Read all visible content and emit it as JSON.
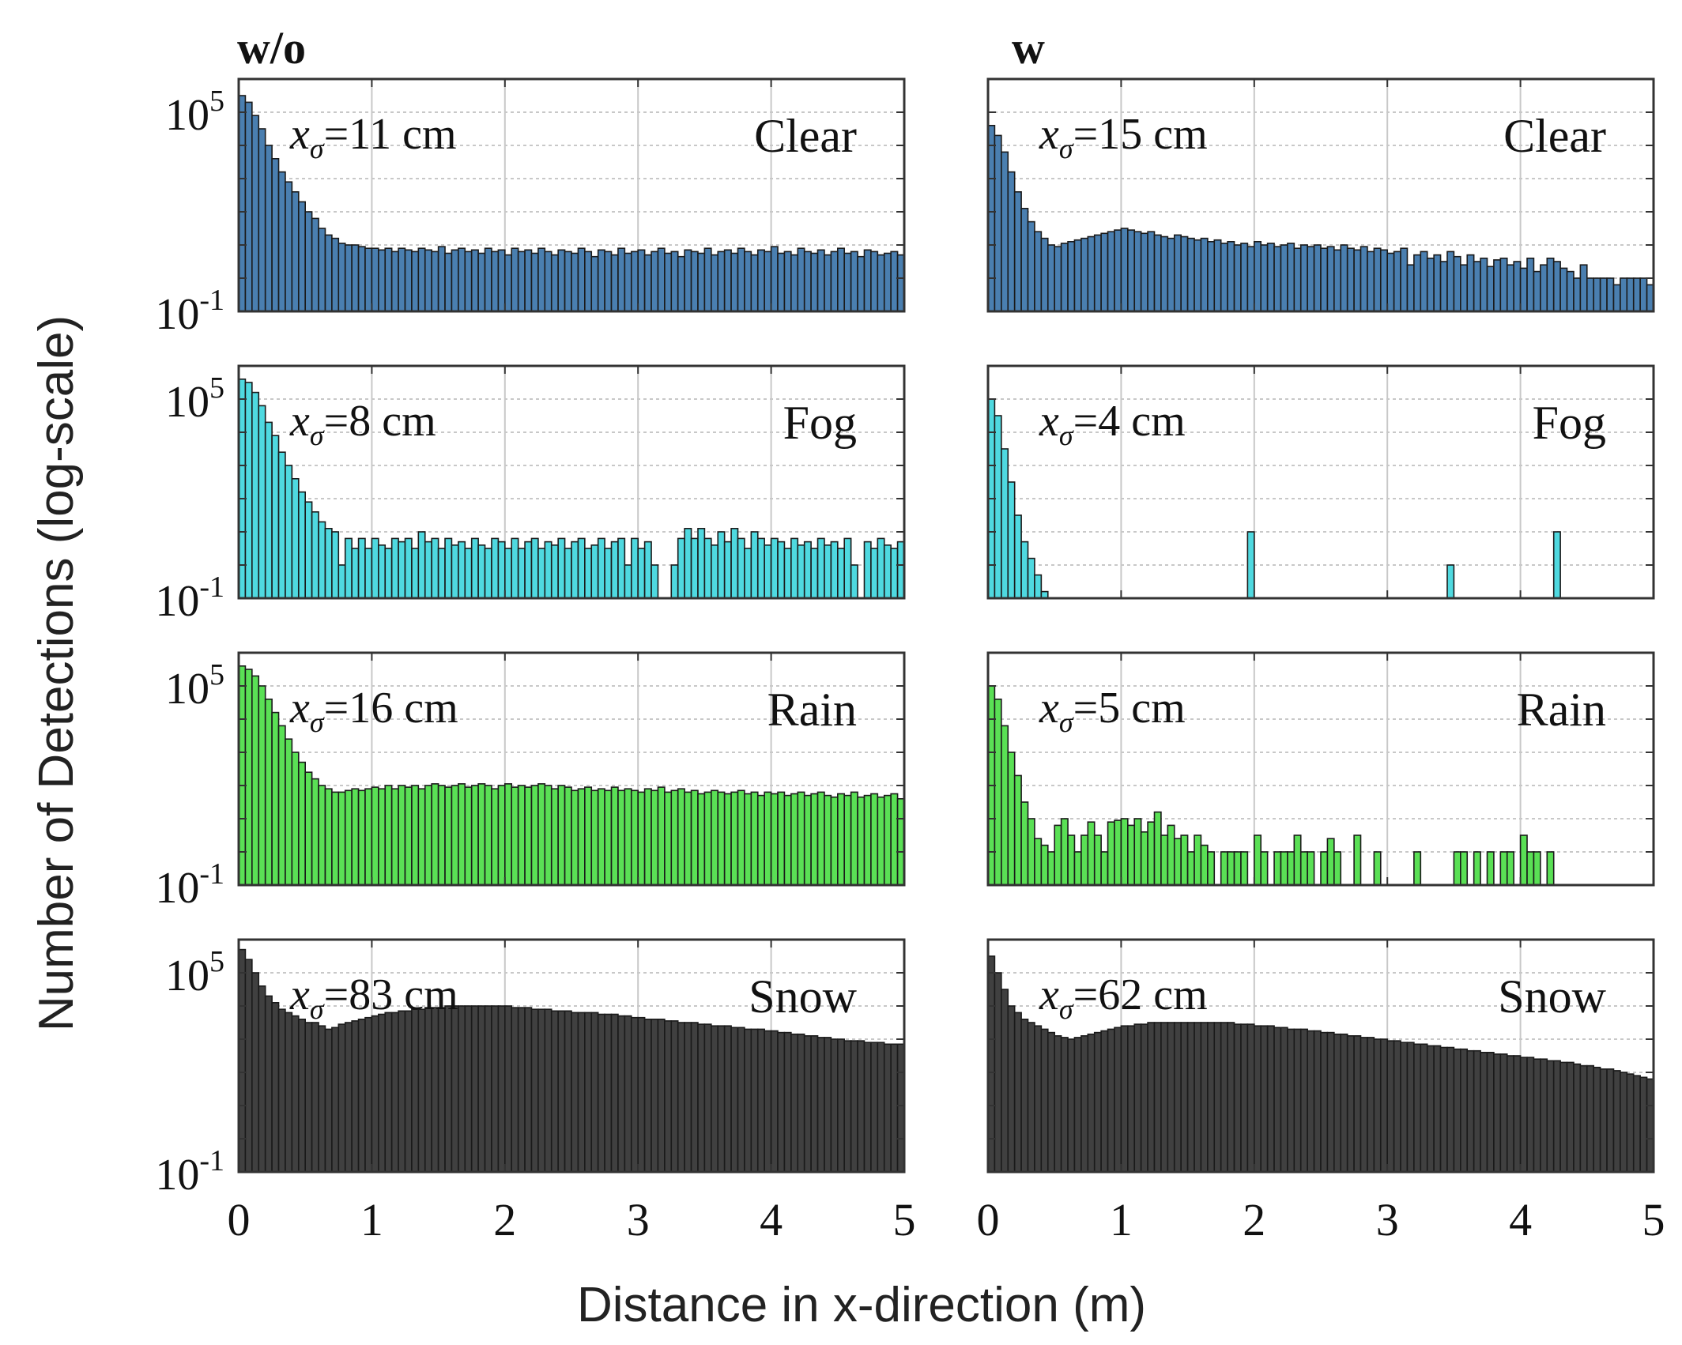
{
  "figure": {
    "y_axis_label": "Number of Detections (log-scale)",
    "x_axis_label": "Distance in x-direction (m)",
    "columns": [
      {
        "key": "wo",
        "label": "w/o"
      },
      {
        "key": "w",
        "label": "w"
      }
    ]
  },
  "colors": {
    "Clear": "#4a7fb0",
    "Fog": "#4fd9e0",
    "Rain": "#5ae055",
    "Snow": "#404040",
    "edge": "#1a1a1a",
    "grid": "#c8c8c8",
    "axis": "#333333"
  },
  "chart_data": [
    {
      "type": "bar",
      "column": "w/o",
      "condition": "Clear",
      "annotation_var": "x",
      "annotation_sub": "σ",
      "annotation_value": "=11 cm",
      "x_range": [
        0,
        5
      ],
      "bin_width": 0.05,
      "log_ylim": [
        -1,
        6
      ],
      "x_ticks": [
        "0",
        "1",
        "2",
        "3",
        "4",
        "5"
      ],
      "y_tick_base": "10",
      "y_ticks_exp": [
        "5",
        "-1"
      ],
      "log_values": [
        5.5,
        5.3,
        4.9,
        4.5,
        4.0,
        3.6,
        3.2,
        2.9,
        2.6,
        2.3,
        2.0,
        1.8,
        1.5,
        1.3,
        1.2,
        1.05,
        1.0,
        1.0,
        0.95,
        0.9,
        0.9,
        0.85,
        0.9,
        0.8,
        0.9,
        0.85,
        0.8,
        0.9,
        0.85,
        0.8,
        0.95,
        0.75,
        0.85,
        0.9,
        0.8,
        0.85,
        0.75,
        0.9,
        0.8,
        0.85,
        0.7,
        0.9,
        0.8,
        0.85,
        0.75,
        0.9,
        0.8,
        0.7,
        0.85,
        0.8,
        0.75,
        0.9,
        0.8,
        0.65,
        0.85,
        0.8,
        0.7,
        0.9,
        0.75,
        0.8,
        0.85,
        0.7,
        0.8,
        0.9,
        0.75,
        0.8,
        0.65,
        0.85,
        0.8,
        0.75,
        0.9,
        0.7,
        0.8,
        0.85,
        0.75,
        0.9,
        0.8,
        0.7,
        0.85,
        0.8,
        0.95,
        0.75,
        0.8,
        0.7,
        0.9,
        0.8,
        0.75,
        0.85,
        0.7,
        0.8,
        0.9,
        0.75,
        0.8,
        0.65,
        0.85,
        0.8,
        0.7,
        0.75,
        0.8,
        0.7
      ]
    },
    {
      "type": "bar",
      "column": "w",
      "condition": "Clear",
      "annotation_var": "x",
      "annotation_sub": "σ",
      "annotation_value": "=15 cm",
      "x_range": [
        0,
        5
      ],
      "bin_width": 0.05,
      "log_ylim": [
        -1,
        6
      ],
      "x_ticks": [
        "0",
        "1",
        "2",
        "3",
        "4",
        "5"
      ],
      "y_tick_base": "10",
      "y_ticks_exp": [
        "",
        ""
      ],
      "log_values": [
        4.6,
        4.3,
        3.8,
        3.2,
        2.6,
        2.1,
        1.7,
        1.4,
        1.2,
        1.0,
        0.95,
        1.05,
        1.1,
        1.15,
        1.2,
        1.25,
        1.3,
        1.35,
        1.4,
        1.45,
        1.5,
        1.45,
        1.4,
        1.35,
        1.4,
        1.3,
        1.25,
        1.2,
        1.3,
        1.25,
        1.2,
        1.15,
        1.2,
        1.1,
        1.15,
        1.05,
        1.1,
        1.0,
        1.05,
        0.95,
        1.1,
        1.0,
        1.05,
        0.95,
        1.0,
        1.05,
        0.9,
        1.0,
        0.95,
        1.0,
        0.9,
        0.95,
        0.85,
        1.0,
        0.9,
        0.85,
        0.95,
        0.8,
        0.9,
        0.85,
        0.75,
        0.8,
        0.9,
        0.4,
        0.7,
        0.8,
        0.6,
        0.7,
        0.5,
        0.8,
        0.65,
        0.4,
        0.7,
        0.5,
        0.6,
        0.35,
        0.55,
        0.6,
        0.4,
        0.5,
        0.3,
        0.6,
        0.2,
        0.4,
        0.6,
        0.5,
        0.3,
        0.2,
        0.0,
        0.4,
        0.0,
        0.0,
        0.0,
        0.0,
        -0.2,
        0.0,
        0.0,
        0.0,
        0.0,
        -0.2
      ]
    },
    {
      "type": "bar",
      "column": "w/o",
      "condition": "Fog",
      "annotation_var": "x",
      "annotation_sub": "σ",
      "annotation_value": "=8 cm",
      "x_range": [
        0,
        5
      ],
      "bin_width": 0.05,
      "log_ylim": [
        -1,
        6
      ],
      "x_ticks": [
        "0",
        "1",
        "2",
        "3",
        "4",
        "5"
      ],
      "y_tick_base": "10",
      "y_ticks_exp": [
        "5",
        "-1"
      ],
      "log_values": [
        5.6,
        5.5,
        5.2,
        4.8,
        4.3,
        3.9,
        3.4,
        3.0,
        2.6,
        2.2,
        1.9,
        1.6,
        1.3,
        1.1,
        1.0,
        0.0,
        0.8,
        0.5,
        0.8,
        0.5,
        0.8,
        0.6,
        0.5,
        0.8,
        0.7,
        0.8,
        0.5,
        1.0,
        0.7,
        0.8,
        0.5,
        0.8,
        0.6,
        0.7,
        0.5,
        0.8,
        0.6,
        0.5,
        0.8,
        0.7,
        0.5,
        0.8,
        0.5,
        0.7,
        0.8,
        0.5,
        0.7,
        0.6,
        0.8,
        0.5,
        0.7,
        0.8,
        0.5,
        0.6,
        0.8,
        0.5,
        0.7,
        0.8,
        0.0,
        0.8,
        0.5,
        0.7,
        0.0,
        -1.0,
        -1.0,
        0.0,
        0.8,
        1.1,
        0.8,
        1.1,
        0.8,
        0.6,
        1.0,
        0.7,
        1.1,
        0.8,
        0.5,
        1.0,
        0.8,
        0.6,
        0.8,
        0.7,
        0.5,
        0.8,
        0.6,
        0.7,
        0.5,
        0.8,
        0.6,
        0.7,
        0.5,
        0.8,
        0.0,
        -1.0,
        0.7,
        0.5,
        0.8,
        0.6,
        0.5,
        0.7
      ]
    },
    {
      "type": "bar",
      "column": "w",
      "condition": "Fog",
      "annotation_var": "x",
      "annotation_sub": "σ",
      "annotation_value": "=4 cm",
      "x_range": [
        0,
        5
      ],
      "bin_width": 0.05,
      "log_ylim": [
        -1,
        6
      ],
      "x_ticks": [
        "0",
        "1",
        "2",
        "3",
        "4",
        "5"
      ],
      "y_tick_base": "10",
      "y_ticks_exp": [
        "",
        ""
      ],
      "log_values": [
        5.0,
        4.5,
        3.5,
        2.5,
        1.5,
        0.7,
        0.2,
        -0.3,
        -0.8,
        -1.0,
        -1.0,
        -1.0,
        -1.0,
        -1.0,
        -1.0,
        -1.0,
        -1.0,
        -1.0,
        -1.0,
        -1.0,
        -1.0,
        -1.0,
        -1.0,
        -1.0,
        -1.0,
        -1.0,
        -1.0,
        -1.0,
        -1.0,
        -1.0,
        -1.0,
        -1.0,
        -1.0,
        -1.0,
        -1.0,
        -1.0,
        -1.0,
        -1.0,
        -1.0,
        1.0,
        -1.0,
        -1.0,
        -1.0,
        -1.0,
        -1.0,
        -1.0,
        -1.0,
        -1.0,
        -1.0,
        -1.0,
        -1.0,
        -1.0,
        -1.0,
        -1.0,
        -1.0,
        -1.0,
        -1.0,
        -1.0,
        -1.0,
        -1.0,
        -1.0,
        -1.0,
        -1.0,
        -1.0,
        -1.0,
        -1.0,
        -1.0,
        -1.0,
        -1.0,
        0.0,
        -1.0,
        -1.0,
        -1.0,
        -1.0,
        -1.0,
        -1.0,
        -1.0,
        -1.0,
        -1.0,
        -1.0,
        -1.0,
        -1.0,
        -1.0,
        -1.0,
        -1.0,
        1.0,
        -1.0,
        -1.0,
        -1.0,
        -1.0,
        -1.0,
        -1.0,
        -1.0,
        -1.0,
        -1.0,
        -1.0,
        -1.0,
        -1.0,
        -1.0,
        -1.0
      ]
    },
    {
      "type": "bar",
      "column": "w/o",
      "condition": "Rain",
      "annotation_var": "x",
      "annotation_sub": "σ",
      "annotation_value": "=16 cm",
      "x_range": [
        0,
        5
      ],
      "bin_width": 0.05,
      "log_ylim": [
        -1,
        6
      ],
      "x_ticks": [
        "0",
        "1",
        "2",
        "3",
        "4",
        "5"
      ],
      "y_tick_base": "10",
      "y_ticks_exp": [
        "5",
        "-1"
      ],
      "log_values": [
        5.6,
        5.5,
        5.3,
        5.0,
        4.6,
        4.2,
        3.8,
        3.4,
        3.0,
        2.7,
        2.4,
        2.2,
        2.0,
        1.9,
        1.8,
        1.8,
        1.85,
        1.9,
        1.85,
        1.9,
        1.95,
        1.9,
        2.0,
        1.9,
        2.0,
        1.95,
        2.0,
        1.9,
        2.0,
        2.05,
        2.0,
        1.95,
        2.0,
        2.05,
        1.95,
        2.0,
        2.05,
        2.0,
        1.9,
        2.0,
        2.05,
        1.95,
        2.0,
        1.95,
        2.0,
        2.05,
        2.0,
        1.9,
        2.0,
        1.95,
        1.85,
        1.9,
        1.95,
        1.85,
        1.9,
        1.85,
        1.95,
        1.85,
        1.9,
        1.85,
        1.8,
        1.9,
        1.85,
        1.95,
        1.8,
        1.85,
        1.9,
        1.8,
        1.85,
        1.75,
        1.8,
        1.85,
        1.8,
        1.75,
        1.8,
        1.85,
        1.75,
        1.8,
        1.7,
        1.8,
        1.75,
        1.8,
        1.7,
        1.75,
        1.8,
        1.7,
        1.75,
        1.8,
        1.7,
        1.65,
        1.75,
        1.7,
        1.8,
        1.65,
        1.7,
        1.75,
        1.65,
        1.7,
        1.75,
        1.6
      ]
    },
    {
      "type": "bar",
      "column": "w",
      "condition": "Rain",
      "annotation_var": "x",
      "annotation_sub": "σ",
      "annotation_value": "=5 cm",
      "x_range": [
        0,
        5
      ],
      "bin_width": 0.05,
      "log_ylim": [
        -1,
        6
      ],
      "x_ticks": [
        "0",
        "1",
        "2",
        "3",
        "4",
        "5"
      ],
      "y_tick_base": "10",
      "y_ticks_exp": [
        "",
        ""
      ],
      "log_values": [
        5.0,
        4.6,
        3.8,
        3.0,
        2.3,
        1.5,
        1.0,
        0.4,
        0.2,
        0.0,
        0.8,
        1.0,
        0.5,
        0.0,
        0.5,
        0.9,
        0.5,
        0.0,
        0.9,
        0.95,
        1.0,
        0.8,
        1.0,
        0.6,
        0.9,
        1.2,
        0.5,
        0.8,
        0.4,
        0.5,
        0.0,
        0.5,
        0.2,
        0.0,
        -1.0,
        0.0,
        0.0,
        0.0,
        0.0,
        -1.0,
        0.5,
        0.0,
        -1.0,
        0.0,
        0.0,
        0.0,
        0.5,
        0.0,
        0.0,
        -1.0,
        0.0,
        0.4,
        0.0,
        -1.0,
        -1.0,
        0.5,
        -1.0,
        -1.0,
        0.0,
        -1.0,
        -1.0,
        -1.0,
        -1.0,
        -1.0,
        0.0,
        -1.0,
        -1.0,
        -1.0,
        -1.0,
        -1.0,
        0.0,
        0.0,
        -1.0,
        0.0,
        -1.0,
        0.0,
        -1.0,
        0.0,
        0.0,
        -1.0,
        0.5,
        0.0,
        0.0,
        -1.0,
        0.0,
        -1.0,
        -1.0,
        -1.0,
        -1.0,
        -1.0,
        -1.0,
        -1.0,
        -1.0,
        -1.0,
        -1.0,
        -1.0,
        -1.0,
        -1.0,
        -1.0,
        -1.0
      ]
    },
    {
      "type": "bar",
      "column": "w/o",
      "condition": "Snow",
      "annotation_var": "x",
      "annotation_sub": "σ",
      "annotation_value": "=83 cm",
      "x_range": [
        0,
        5
      ],
      "bin_width": 0.05,
      "log_ylim": [
        -1,
        6
      ],
      "x_ticks": [
        "0",
        "1",
        "2",
        "3",
        "4",
        "5"
      ],
      "y_tick_base": "10",
      "y_ticks_exp": [
        "5",
        "-1"
      ],
      "log_values": [
        5.7,
        5.4,
        5.0,
        4.6,
        4.3,
        4.1,
        3.9,
        3.8,
        3.7,
        3.6,
        3.5,
        3.5,
        3.4,
        3.3,
        3.35,
        3.45,
        3.5,
        3.55,
        3.6,
        3.65,
        3.7,
        3.75,
        3.8,
        3.8,
        3.85,
        3.85,
        3.9,
        3.9,
        3.95,
        3.95,
        3.95,
        4.0,
        4.0,
        4.0,
        4.0,
        4.0,
        4.0,
        4.0,
        4.0,
        4.0,
        4.0,
        3.95,
        3.95,
        3.95,
        3.9,
        3.9,
        3.9,
        3.85,
        3.85,
        3.85,
        3.8,
        3.8,
        3.8,
        3.8,
        3.75,
        3.75,
        3.75,
        3.7,
        3.7,
        3.65,
        3.65,
        3.6,
        3.6,
        3.6,
        3.55,
        3.55,
        3.5,
        3.5,
        3.5,
        3.45,
        3.45,
        3.4,
        3.4,
        3.4,
        3.35,
        3.35,
        3.3,
        3.3,
        3.3,
        3.25,
        3.25,
        3.2,
        3.2,
        3.15,
        3.15,
        3.1,
        3.1,
        3.05,
        3.05,
        3.0,
        3.0,
        2.95,
        2.95,
        2.95,
        2.9,
        2.9,
        2.9,
        2.85,
        2.85,
        2.85
      ]
    },
    {
      "type": "bar",
      "column": "w",
      "condition": "Snow",
      "annotation_var": "x",
      "annotation_sub": "σ",
      "annotation_value": "=62 cm",
      "x_range": [
        0,
        5
      ],
      "bin_width": 0.05,
      "log_ylim": [
        -1,
        6
      ],
      "x_ticks": [
        "0",
        "1",
        "2",
        "3",
        "4",
        "5"
      ],
      "y_tick_base": "10",
      "y_ticks_exp": [
        "",
        ""
      ],
      "log_values": [
        5.5,
        5.0,
        4.5,
        4.0,
        3.8,
        3.6,
        3.5,
        3.4,
        3.3,
        3.2,
        3.1,
        3.05,
        3.0,
        3.05,
        3.1,
        3.15,
        3.2,
        3.25,
        3.3,
        3.35,
        3.4,
        3.4,
        3.45,
        3.45,
        3.5,
        3.5,
        3.5,
        3.5,
        3.5,
        3.5,
        3.5,
        3.5,
        3.5,
        3.5,
        3.5,
        3.5,
        3.5,
        3.45,
        3.45,
        3.45,
        3.4,
        3.4,
        3.4,
        3.35,
        3.35,
        3.3,
        3.3,
        3.3,
        3.25,
        3.25,
        3.2,
        3.2,
        3.15,
        3.15,
        3.1,
        3.1,
        3.05,
        3.05,
        3.0,
        3.0,
        2.95,
        2.95,
        2.9,
        2.9,
        2.85,
        2.85,
        2.8,
        2.8,
        2.75,
        2.75,
        2.7,
        2.7,
        2.65,
        2.65,
        2.6,
        2.6,
        2.55,
        2.55,
        2.5,
        2.5,
        2.45,
        2.45,
        2.4,
        2.4,
        2.35,
        2.35,
        2.3,
        2.3,
        2.25,
        2.2,
        2.2,
        2.15,
        2.1,
        2.1,
        2.05,
        2.0,
        1.95,
        1.9,
        1.85,
        1.8
      ]
    }
  ]
}
